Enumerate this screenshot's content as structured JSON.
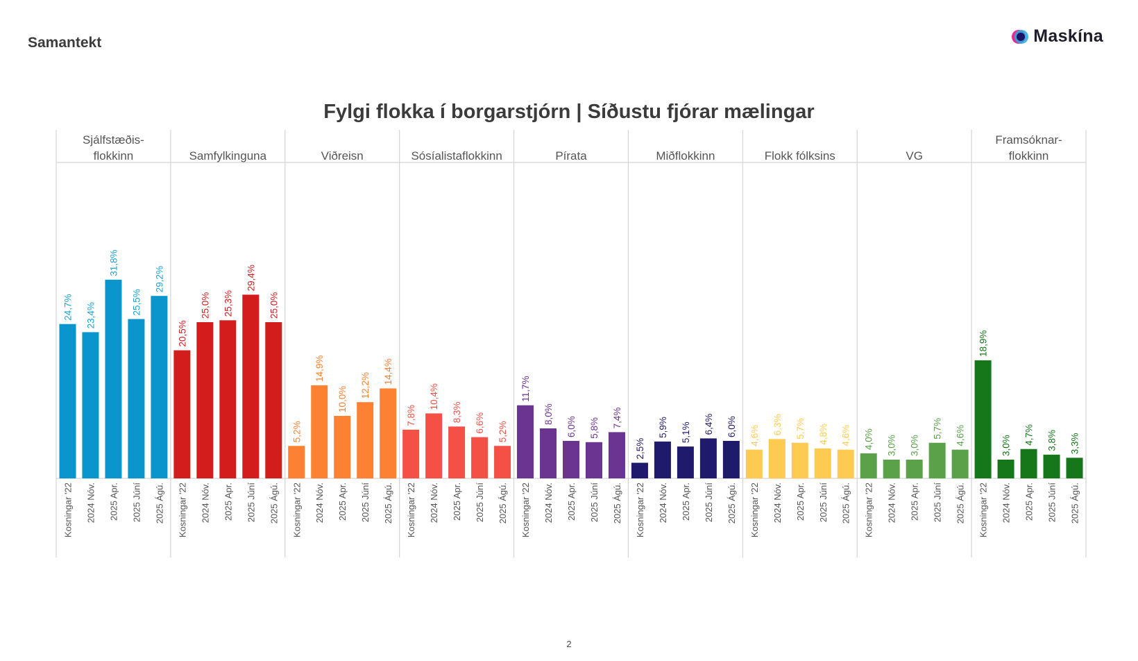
{
  "header": {
    "title": "Samantekt"
  },
  "logo": {
    "text": "Maskína",
    "icon": "maskina-logo-icon"
  },
  "footer": {
    "page_number": "2"
  },
  "chart_data": {
    "type": "bar",
    "title": "Fylgi flokka í borgarstjórn | Síðustu fjórar mælingar",
    "xlabel": "",
    "ylabel": "",
    "ylim": [
      0,
      40
    ],
    "grid": false,
    "legend": "none",
    "categories": [
      "Kosningar '22",
      "2024 Nóv.",
      "2025 Apr.",
      "2025 Júní",
      "2025 Ágú."
    ],
    "series": [
      {
        "name": [
          "Sjálfstæðis-",
          "flokkinn"
        ],
        "color": "#0a95cc",
        "label_color": "#1aa3d4",
        "values": [
          24.7,
          23.4,
          31.8,
          25.5,
          29.2
        ],
        "labels": [
          "24,7%",
          "23,4%",
          "31,8%",
          "25,5%",
          "29,2%"
        ]
      },
      {
        "name": [
          "Samfylkinguna"
        ],
        "color": "#d31c1c",
        "label_color": "#d31c1c",
        "values": [
          20.5,
          25.0,
          25.3,
          29.4,
          25.0
        ],
        "labels": [
          "20,5%",
          "25,0%",
          "25,3%",
          "29,4%",
          "25,0%"
        ]
      },
      {
        "name": [
          "Viðreisn"
        ],
        "color": "#fd8132",
        "label_color": "#fd8132",
        "values": [
          5.2,
          14.9,
          10.0,
          12.2,
          14.4
        ],
        "labels": [
          "5,2%",
          "14,9%",
          "10,0%",
          "12,2%",
          "14,4%"
        ]
      },
      {
        "name": [
          "Sósíalistaflokkinn"
        ],
        "color": "#f55045",
        "label_color": "#f55045",
        "values": [
          7.8,
          10.4,
          8.3,
          6.6,
          5.2
        ],
        "labels": [
          "7,8%",
          "10,4%",
          "8,3%",
          "6,6%",
          "5,2%"
        ]
      },
      {
        "name": [
          "Pírata"
        ],
        "color": "#6c3491",
        "label_color": "#6c3491",
        "values": [
          11.7,
          8.0,
          6.0,
          5.8,
          7.4
        ],
        "labels": [
          "11,7%",
          "8,0%",
          "6,0%",
          "5,8%",
          "7,4%"
        ]
      },
      {
        "name": [
          "Miðflokkinn"
        ],
        "color": "#1f1a6b",
        "label_color": "#1f1a6b",
        "values": [
          2.5,
          5.9,
          5.1,
          6.4,
          6.0
        ],
        "labels": [
          "2,5%",
          "5,9%",
          "5,1%",
          "6,4%",
          "6,0%"
        ]
      },
      {
        "name": [
          "Flokk fólksins"
        ],
        "color": "#fdcb52",
        "label_color": "#fdcb52",
        "values": [
          4.6,
          6.3,
          5.7,
          4.8,
          4.6
        ],
        "labels": [
          "4,6%",
          "6,3%",
          "5,7%",
          "4,8%",
          "4,6%"
        ]
      },
      {
        "name": [
          "VG"
        ],
        "color": "#5aa14a",
        "label_color": "#5aa14a",
        "values": [
          4.0,
          3.0,
          3.0,
          5.7,
          4.6
        ],
        "labels": [
          "4,0%",
          "3,0%",
          "3,0%",
          "5,7%",
          "4,6%"
        ]
      },
      {
        "name": [
          "Framsóknar-",
          "flokkinn"
        ],
        "color": "#16761a",
        "label_color": "#16761a",
        "values": [
          18.9,
          3.0,
          4.7,
          3.8,
          3.3
        ],
        "labels": [
          "18,9%",
          "3,0%",
          "4,7%",
          "3,8%",
          "3,3%"
        ]
      }
    ]
  }
}
